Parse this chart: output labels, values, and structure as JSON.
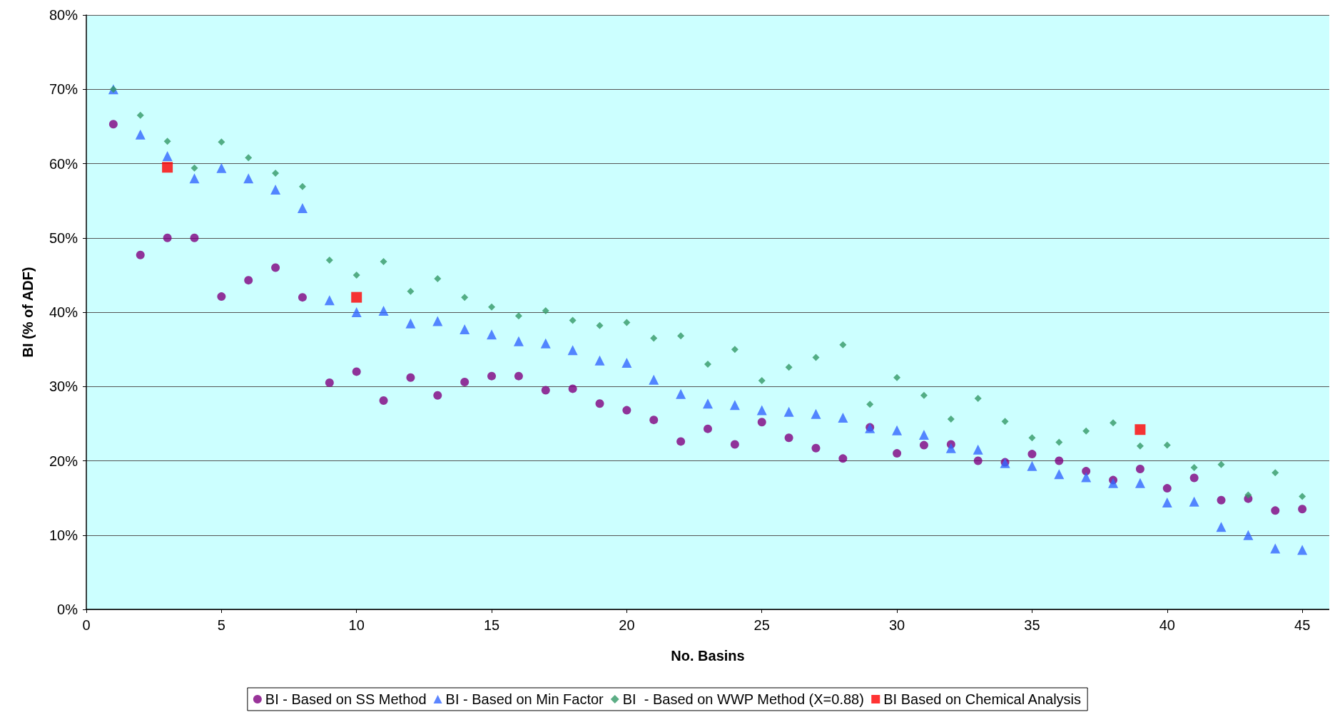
{
  "chart_data": {
    "type": "scatter",
    "xlabel": "No. Basins",
    "ylabel": "BI (% of ADF)",
    "x": [
      1,
      2,
      3,
      4,
      5,
      6,
      7,
      8,
      9,
      10,
      11,
      12,
      13,
      14,
      15,
      16,
      17,
      18,
      19,
      20,
      21,
      22,
      23,
      24,
      25,
      26,
      27,
      28,
      29,
      30,
      31,
      32,
      33,
      34,
      35,
      36,
      37,
      38,
      39,
      40,
      41,
      42,
      43,
      44,
      45
    ],
    "series": [
      {
        "name": "BI - Based on SS Method",
        "color": "#800080",
        "marker": "circle",
        "values": [
          65.3,
          47.7,
          50,
          50,
          42.1,
          44.3,
          46,
          42,
          30.5,
          32,
          28.1,
          31.2,
          28.8,
          30.6,
          31.4,
          31.4,
          29.5,
          29.7,
          27.7,
          26.8,
          25.5,
          22.6,
          24.3,
          22.2,
          25.2,
          23.1,
          21.7,
          20.3,
          24.5,
          21.0,
          22.1,
          22.2,
          20.0,
          19.8,
          20.9,
          20.0,
          18.6,
          17.4,
          18.9,
          16.3,
          17.7,
          14.7,
          14.9,
          13.3,
          13.5
        ]
      },
      {
        "name": "BI - Based on Min Factor",
        "color": "#3366ff",
        "marker": "triangle",
        "values": [
          70,
          63.9,
          61,
          58,
          59.4,
          58,
          56.5,
          54,
          41.6,
          40,
          40.2,
          38.5,
          38.8,
          37.7,
          37,
          36.1,
          35.8,
          34.9,
          33.5,
          33.2,
          30.9,
          29,
          27.7,
          27.5,
          26.8,
          26.6,
          26.3,
          25.8,
          24.4,
          24.1,
          23.5,
          21.7,
          21.5,
          19.7,
          19.3,
          18.2,
          17.8,
          17.0,
          17.0,
          14.4,
          14.5,
          11.1,
          10.0,
          8.2,
          8.0
        ]
      },
      {
        "name": "BI  - Based on WWP Method (X=0.88)",
        "color": "#339966",
        "marker": "diamond",
        "values": [
          70,
          66.5,
          63,
          59.4,
          62.9,
          60.8,
          58.7,
          56.9,
          47,
          45,
          46.8,
          42.8,
          44.5,
          42,
          40.7,
          39.5,
          40.2,
          38.9,
          38.2,
          38.6,
          36.5,
          36.8,
          33,
          35,
          30.8,
          32.6,
          33.9,
          35.6,
          27.6,
          31.2,
          28.8,
          25.6,
          28.4,
          25.3,
          23.1,
          22.5,
          24,
          25.1,
          22,
          22.1,
          19.1,
          19.5,
          15.4,
          18.4,
          15.2
        ]
      },
      {
        "name": "BI Based on Chemical Analysis",
        "color": "#ff0000",
        "marker": "square",
        "x": [
          3,
          10,
          39
        ],
        "values": [
          59.5,
          42,
          24.2
        ]
      }
    ],
    "xlim": [
      0,
      46
    ],
    "xticks": [
      0,
      5,
      10,
      15,
      20,
      25,
      30,
      35,
      40,
      45
    ],
    "ylim": [
      0,
      80
    ],
    "yticks": [
      {
        "value": 0,
        "label": "0%"
      },
      {
        "value": 10,
        "label": "10%"
      },
      {
        "value": 20,
        "label": "20%"
      },
      {
        "value": 30,
        "label": "30%"
      },
      {
        "value": 40,
        "label": "40%"
      },
      {
        "value": 50,
        "label": "50%"
      },
      {
        "value": 60,
        "label": "60%"
      },
      {
        "value": 70,
        "label": "70%"
      },
      {
        "value": 80,
        "label": "80%"
      }
    ],
    "grid": "y",
    "legend": "bottom"
  }
}
